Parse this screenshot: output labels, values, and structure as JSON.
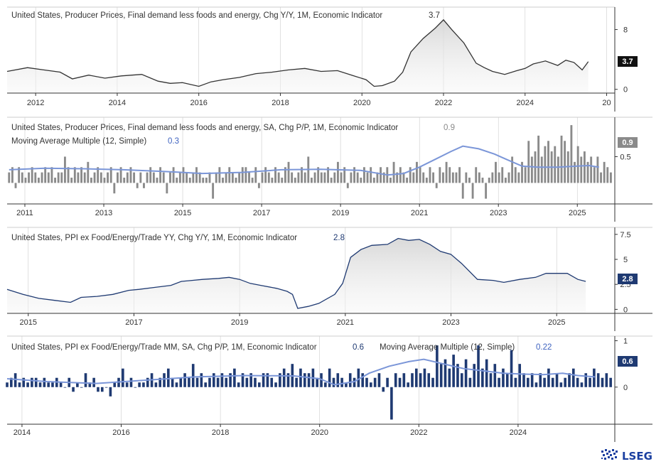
{
  "colors": {
    "gray_series": "#333333",
    "gray_bars": "#8a8a8a",
    "navy": "#1f3a72",
    "ma_line": "#7b96d8",
    "ma_text": "#3f63c0",
    "area_fill": "#e3e3e3",
    "grid": "#cccccc",
    "axis_text": "#333333",
    "brand": "#1a3fa0"
  },
  "brand": {
    "name": "LSEG",
    "icon": "lseg-logo-icon"
  },
  "chart_data": [
    {
      "type": "area",
      "title": "United States, Producer Prices, Final demand less foods and energy, Chg Y/Y, 1M, Economic Indicator",
      "title_value": "3.7",
      "last_value_label": "3.7",
      "x_ticks": [
        "2012",
        "2014",
        "2016",
        "2018",
        "2020",
        "2022",
        "2024",
        "20"
      ],
      "y_ticks": [
        "8",
        "0"
      ],
      "ylim": [
        -0.5,
        11
      ],
      "x_range": [
        2011.3,
        2026.2
      ],
      "series": [
        {
          "x": [
            2011.3,
            2011.8,
            2012.2,
            2012.6,
            2012.9,
            2013.3,
            2013.7,
            2014.1,
            2014.6,
            2015.0,
            2015.3,
            2015.6,
            2016.0,
            2016.3,
            2016.6,
            2017.0,
            2017.4,
            2017.8,
            2018.2,
            2018.6,
            2019.0,
            2019.4,
            2019.8,
            2020.1,
            2020.3,
            2020.5,
            2020.8,
            2021.0,
            2021.2,
            2021.5,
            2021.8,
            2022.0,
            2022.2,
            2022.5,
            2022.8,
            2023.0,
            2023.2,
            2023.5,
            2023.8,
            2024.0,
            2024.2,
            2024.5,
            2024.8,
            2025.0,
            2025.2,
            2025.4,
            2025.55
          ],
          "y": [
            2.4,
            2.9,
            2.6,
            2.3,
            1.4,
            1.9,
            1.5,
            1.8,
            2.0,
            1.1,
            0.8,
            0.9,
            0.4,
            1.0,
            1.3,
            1.6,
            2.1,
            2.3,
            2.6,
            2.8,
            2.4,
            2.5,
            1.8,
            1.3,
            0.4,
            0.5,
            1.1,
            2.3,
            5.0,
            6.8,
            8.2,
            9.3,
            8.0,
            6.2,
            3.5,
            2.9,
            2.4,
            2.0,
            2.5,
            2.8,
            3.4,
            3.8,
            3.2,
            3.9,
            3.6,
            2.6,
            3.7
          ]
        }
      ]
    },
    {
      "type": "bar",
      "title": "United States, Producer Prices, Final demand less foods and energy, SA, Chg P/P, 1M, Economic Indicator",
      "title_value": "0.9",
      "ma_title": "Moving Average Multiple (12, Simple)",
      "ma_value": "0.3",
      "last_value_label": "0.9",
      "x_ticks": [
        "2011",
        "2013",
        "2015",
        "2017",
        "2019",
        "2021",
        "2023",
        "2025"
      ],
      "y_ticks": [
        "0.5"
      ],
      "ylim": [
        -0.4,
        1.25
      ],
      "x_range": [
        2010.55,
        2025.95
      ],
      "bar_start": 2010.6,
      "bar_step": 0.08333,
      "values": [
        0.2,
        0.3,
        -0.1,
        0.3,
        0.2,
        0.1,
        0.2,
        0.3,
        0.2,
        0.1,
        0.2,
        0.3,
        0.2,
        0.3,
        0.1,
        0.2,
        0.2,
        0.5,
        0.3,
        0.1,
        0.3,
        0.2,
        0.3,
        0.2,
        0.4,
        0.1,
        0.2,
        0.3,
        0.2,
        0.1,
        0.2,
        0.3,
        -0.2,
        0.2,
        0.3,
        0.1,
        0.2,
        0.3,
        0.2,
        -0.1,
        0.2,
        -0.1,
        0.2,
        0.3,
        0.2,
        0.1,
        0.3,
        0.2,
        -0.2,
        0.2,
        0.3,
        0.1,
        0.2,
        0.3,
        0.2,
        0.1,
        0.2,
        0.3,
        0.2,
        0.1,
        0.1,
        0.2,
        -0.3,
        0.2,
        0.3,
        0.1,
        0.2,
        0.3,
        0.2,
        0.1,
        0.2,
        0.3,
        0.3,
        0.2,
        0.1,
        0.3,
        -0.1,
        0.2,
        0.3,
        0.2,
        0.1,
        0.3,
        0.2,
        0.1,
        0.3,
        0.4,
        0.2,
        0.1,
        0.2,
        0.3,
        0.2,
        0.5,
        0.1,
        0.2,
        0.3,
        0.2,
        0.2,
        0.3,
        0.1,
        0.2,
        0.4,
        0.2,
        0.3,
        -0.1,
        0.2,
        0.3,
        0.2,
        0.1,
        0.3,
        0.2,
        0.3,
        0.1,
        0.2,
        0.3,
        0.2,
        0.3,
        0.1,
        0.4,
        0.2,
        0.3,
        0.2,
        0.1,
        0.3,
        0.2,
        0.4,
        0.3,
        0.2,
        0.1,
        0.3,
        0.2,
        -0.1,
        0.3,
        0.2,
        0.4,
        0.3,
        0.2,
        0.2,
        0.3,
        -0.3,
        0.2,
        0.1,
        -0.3,
        0.3,
        0.2,
        0.1,
        -0.3,
        0.1,
        0.2,
        0.4,
        0.2,
        0.3,
        0.1,
        0.2,
        0.5,
        0.3,
        0.2,
        0.4,
        0.3,
        0.8,
        0.5,
        0.6,
        0.9,
        0.5,
        0.7,
        0.8,
        0.6,
        0.7,
        0.5,
        0.9,
        0.8,
        0.6,
        1.1,
        0.4,
        0.7,
        0.5,
        0.6,
        0.4,
        0.5,
        0.3,
        0.5,
        0.2,
        0.4,
        0.3,
        0.2,
        0.4,
        0.3,
        0.1,
        0.3,
        0.2,
        0.3,
        0.2,
        0.4,
        0.1,
        0.3,
        0.2,
        0.3,
        0.4,
        0.2,
        0.3,
        0.1,
        0.4,
        0.2,
        0.3,
        0.5,
        0.3,
        0.2,
        0.4,
        0.5,
        0.3,
        0.5,
        0.4,
        -0.1,
        0.5,
        0.3,
        0.1,
        -0.2,
        0.4,
        0.9
      ],
      "ma_x": [
        2010.6,
        2011.5,
        2012.5,
        2013.5,
        2014.5,
        2015.5,
        2016.5,
        2017.5,
        2018.5,
        2019.5,
        2020.2,
        2020.6,
        2021.0,
        2021.4,
        2021.8,
        2022.1,
        2022.5,
        2022.9,
        2023.2,
        2023.6,
        2024.0,
        2024.5,
        2025.0,
        2025.3,
        2025.55
      ],
      "ma_y": [
        0.25,
        0.28,
        0.27,
        0.25,
        0.22,
        0.18,
        0.2,
        0.25,
        0.26,
        0.24,
        0.15,
        0.18,
        0.3,
        0.45,
        0.6,
        0.7,
        0.65,
        0.55,
        0.45,
        0.32,
        0.3,
        0.3,
        0.32,
        0.33,
        0.3
      ]
    },
    {
      "type": "area",
      "title": "United States, PPI ex Food/Energy/Trade YY, Chg Y/Y, 1M, Economic Indicator",
      "title_value": "2.8",
      "last_value_label": "2.8",
      "x_ticks": [
        "2015",
        "2017",
        "2019",
        "2021",
        "2023",
        "2025"
      ],
      "y_ticks": [
        "7.5",
        "5",
        "2.5",
        "0"
      ],
      "ylim": [
        -0.4,
        8.2
      ],
      "x_range": [
        2014.6,
        2026.1
      ],
      "series": [
        {
          "x": [
            2014.6,
            2014.9,
            2015.2,
            2015.5,
            2015.8,
            2016.0,
            2016.3,
            2016.6,
            2016.9,
            2017.1,
            2017.4,
            2017.7,
            2017.9,
            2018.1,
            2018.3,
            2018.6,
            2018.8,
            2019.0,
            2019.2,
            2019.4,
            2019.7,
            2019.9,
            2020.0,
            2020.1,
            2020.3,
            2020.5,
            2020.8,
            2020.95,
            2021.1,
            2021.3,
            2021.5,
            2021.8,
            2022.0,
            2022.2,
            2022.4,
            2022.6,
            2022.8,
            2023.0,
            2023.2,
            2023.5,
            2023.8,
            2024.0,
            2024.3,
            2024.6,
            2024.8,
            2025.0,
            2025.2,
            2025.4,
            2025.55
          ],
          "y": [
            2.0,
            1.5,
            1.1,
            0.9,
            0.7,
            1.2,
            1.3,
            1.5,
            1.9,
            2.0,
            2.2,
            2.4,
            2.8,
            2.9,
            3.0,
            3.1,
            3.2,
            3.0,
            2.6,
            2.4,
            2.1,
            1.8,
            1.5,
            0.1,
            0.3,
            0.6,
            1.5,
            2.6,
            5.2,
            6.0,
            6.4,
            6.5,
            7.1,
            6.9,
            7.0,
            6.5,
            5.8,
            5.5,
            4.6,
            3.0,
            2.9,
            2.7,
            3.0,
            3.2,
            3.6,
            3.6,
            3.6,
            3.0,
            2.8
          ]
        }
      ]
    },
    {
      "type": "bar",
      "title": "United States, PPI ex Food/Energy/Trade MM, SA, Chg P/P, 1M, Economic Indicator",
      "title_value": "0.6",
      "ma_title": "Moving Average Multiple (12, Simple)",
      "ma_value": "0.22",
      "last_value_label": "0.6",
      "x_ticks": [
        "2014",
        "2016",
        "2018",
        "2020",
        "2022",
        "2024"
      ],
      "y_ticks": [
        "1",
        "0"
      ],
      "ylim": [
        -0.8,
        1.1
      ],
      "x_range": [
        2013.7,
        2025.95
      ],
      "bar_start": 2013.7,
      "bar_step": 0.08333,
      "values": [
        0.1,
        0.2,
        0.3,
        0.1,
        0.2,
        0.1,
        0.2,
        0.2,
        0.1,
        0.2,
        0.1,
        0.1,
        0.2,
        0.1,
        0.0,
        0.2,
        -0.1,
        0.1,
        0.0,
        0.3,
        0.1,
        0.2,
        -0.1,
        -0.1,
        0.0,
        -0.2,
        0.1,
        0.2,
        0.4,
        0.1,
        0.2,
        0.0,
        0.1,
        0.1,
        0.2,
        0.3,
        0.1,
        0.2,
        0.3,
        0.4,
        0.2,
        0.1,
        0.2,
        0.3,
        0.2,
        0.5,
        0.2,
        0.3,
        0.1,
        0.2,
        0.3,
        0.2,
        0.3,
        0.2,
        0.3,
        0.4,
        0.1,
        0.3,
        0.2,
        0.3,
        0.2,
        0.1,
        0.3,
        0.3,
        0.2,
        0.1,
        0.3,
        0.4,
        0.3,
        0.5,
        0.2,
        0.4,
        0.3,
        0.3,
        0.4,
        0.2,
        0.3,
        0.1,
        0.4,
        0.2,
        0.3,
        0.2,
        0.1,
        0.3,
        0.2,
        0.4,
        0.3,
        0.2,
        0.1,
        0.2,
        0.3,
        -0.1,
        0.2,
        -0.7,
        0.3,
        0.2,
        0.3,
        0.1,
        0.3,
        0.4,
        0.3,
        0.4,
        0.3,
        0.2,
        0.9,
        0.5,
        0.6,
        0.4,
        0.7,
        0.5,
        0.3,
        0.6,
        0.2,
        0.5,
        0.9,
        0.4,
        0.6,
        0.3,
        0.5,
        0.2,
        0.4,
        0.3,
        0.8,
        0.2,
        0.5,
        0.3,
        0.2,
        0.3,
        0.1,
        0.3,
        0.2,
        0.4,
        0.2,
        0.3,
        0.1,
        0.2,
        0.3,
        0.4,
        0.2,
        0.1,
        0.3,
        0.2,
        0.4,
        0.3,
        0.2,
        0.3,
        0.2,
        0.1,
        0.4,
        0.3,
        0.2,
        0.3,
        0.2,
        0.4,
        0.3,
        0.2,
        0.1,
        0.3,
        0.2,
        0.4,
        0.3,
        0.2,
        0.4,
        0.1,
        0.3,
        0.2,
        0.4,
        0.3,
        -0.1,
        0.2,
        -0.2,
        0.3,
        0.1,
        0.6
      ],
      "ma_x": [
        2013.7,
        2014.5,
        2015.5,
        2016.5,
        2017.5,
        2018.5,
        2019.5,
        2020.0,
        2020.3,
        2020.7,
        2021.0,
        2021.4,
        2021.8,
        2022.1,
        2022.5,
        2022.9,
        2023.3,
        2023.7,
        2024.1,
        2024.5,
        2024.9,
        2025.2,
        2025.55
      ],
      "ma_y": [
        0.18,
        0.12,
        0.08,
        0.15,
        0.22,
        0.25,
        0.24,
        0.18,
        0.05,
        0.12,
        0.3,
        0.45,
        0.55,
        0.6,
        0.5,
        0.4,
        0.35,
        0.3,
        0.28,
        0.27,
        0.3,
        0.25,
        0.22
      ]
    }
  ]
}
